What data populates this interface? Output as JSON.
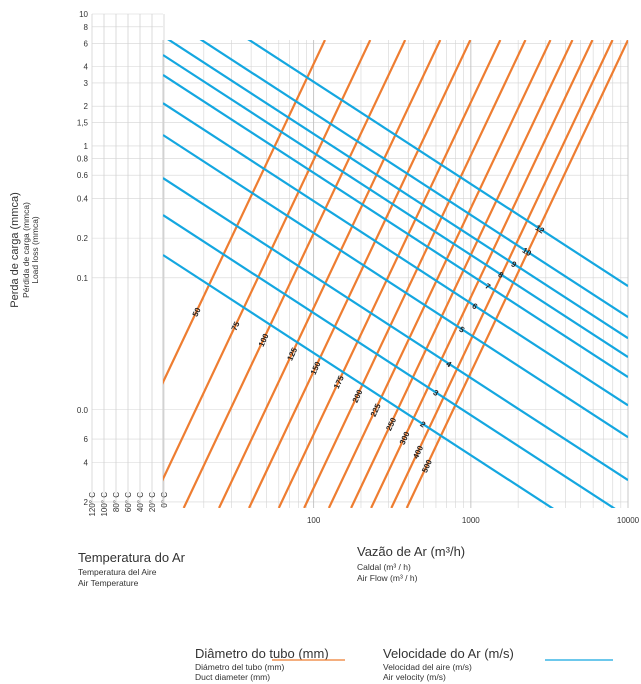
{
  "chart_data": {
    "type": "nomogram",
    "y_title": [
      "Perda de carga (mmca)",
      "Pérdida de carga (mmca)",
      "Load loss (mmca)"
    ],
    "x_title": [
      "Vazão de Ar (m³/h)",
      "Caldal (m³ / h)",
      "Air Flow (m³ / h)"
    ],
    "temperature_title": [
      "Temperatura do Ar",
      "Temperatura del Aire",
      "Air Temperature"
    ],
    "temperatures": [
      "120° C",
      "100° C",
      "80° C",
      "60° C",
      "40° C",
      "20° C",
      "0° C"
    ],
    "log_x": true,
    "log_y": true,
    "grid": true,
    "xlim": [
      11,
      10000
    ],
    "xticks": [
      100,
      1000,
      10000
    ],
    "ylim": [
      0.0018,
      10
    ],
    "yticks": [
      10,
      8,
      6,
      4,
      3,
      2,
      {
        "value": 1.5,
        "label": "1,5"
      },
      1,
      0.8,
      0.6,
      0.4,
      0.2,
      0.1,
      {
        "value": 0.01,
        "label": "0.0"
      },
      {
        "value": 0.006,
        "label": "6"
      },
      {
        "value": 0.004,
        "label": "4"
      },
      {
        "value": 0.002,
        "label": "2"
      }
    ],
    "series": [
      {
        "name": "Diâmetro do tubo (mm)",
        "subnames": [
          "Diámetro del tubo (mm)",
          "Duct diameter (mm)"
        ],
        "color": "#ee7d31",
        "lines": [
          {
            "label": "50",
            "x": [
              4.6,
              118
            ],
            "values": [
              0.0018,
              6.35
            ]
          },
          {
            "label": "75",
            "x": [
              9,
              229
            ],
            "values": [
              0.0018,
              6.35
            ]
          },
          {
            "label": "100",
            "x": [
              14.9,
              382
            ],
            "values": [
              0.0018,
              6.35
            ]
          },
          {
            "label": "125",
            "x": [
              25,
              639
            ],
            "values": [
              0.0018,
              6.35
            ]
          },
          {
            "label": "150",
            "x": [
              38.8,
              992
            ],
            "values": [
              0.0018,
              6.35
            ]
          },
          {
            "label": "175",
            "x": [
              60,
              1540
            ],
            "values": [
              0.0018,
              6.35
            ]
          },
          {
            "label": "200",
            "x": [
              87,
              2225
            ],
            "values": [
              0.0018,
              6.35
            ]
          },
          {
            "label": "225",
            "x": [
              125,
              3210
            ],
            "values": [
              0.0018,
              6.35
            ]
          },
          {
            "label": "250",
            "x": [
              173,
              4430
            ],
            "values": [
              0.0018,
              6.35
            ]
          },
          {
            "label": "300",
            "x": [
              232,
              5940
            ],
            "values": [
              0.0018,
              6.35
            ]
          },
          {
            "label": "400",
            "x": [
              312,
              7970
            ],
            "values": [
              0.0018,
              6.35
            ]
          },
          {
            "label": "500",
            "x": [
              391,
              10000
            ],
            "values": [
              0.0018,
              6.35
            ]
          }
        ]
      },
      {
        "name": "Velocidade do Ar (m/s)",
        "subnames": [
          "Velocidad del aire (m/s)",
          "Air velocity (m/s)"
        ],
        "color": "#14a7e0",
        "lines": [
          {
            "label": "2",
            "x": [
              11,
              10000
            ],
            "values": [
              0.149,
              0.00076
            ]
          },
          {
            "label": "3",
            "x": [
              11,
              10000
            ],
            "values": [
              0.299,
              0.00153
            ]
          },
          {
            "label": "4",
            "x": [
              11,
              10000
            ],
            "values": [
              0.571,
              0.00293
            ]
          },
          {
            "label": "5",
            "x": [
              11,
              10000
            ],
            "values": [
              1.21,
              0.0062
            ]
          },
          {
            "label": "6",
            "x": [
              11,
              10000
            ],
            "values": [
              2.11,
              0.0108
            ]
          },
          {
            "label": "7",
            "x": [
              11,
              10000
            ],
            "values": [
              3.45,
              0.0177
            ]
          },
          {
            "label": "8",
            "x": [
              11,
              10000
            ],
            "values": [
              4.89,
              0.0251
            ]
          },
          {
            "label": "9",
            "x": [
              11,
              10000
            ],
            "values": [
              6.81,
              0.0349
            ]
          },
          {
            "label": "10",
            "x": [
              11,
              10000
            ],
            "values": [
              9.83,
              0.0504
            ]
          },
          {
            "label": "12",
            "x": [
              11,
              10000
            ],
            "values": [
              16.9,
              0.0866
            ]
          }
        ]
      }
    ]
  }
}
